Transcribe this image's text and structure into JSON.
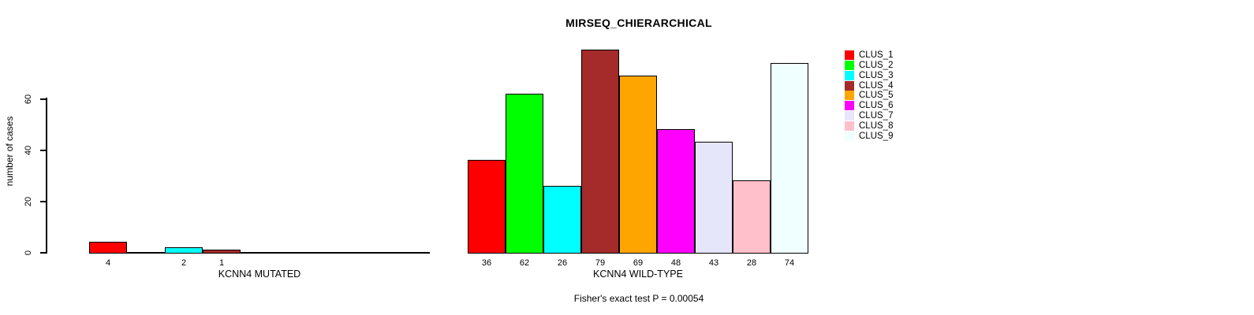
{
  "title": "MIRSEQ_CHIERARCHICAL",
  "chart_data": {
    "type": "bar",
    "title": "MIRSEQ_CHIERARCHICAL",
    "ylabel": "number of cases",
    "xlabel": "",
    "yticks": [
      0,
      20,
      40,
      60
    ],
    "ylim": [
      0,
      79
    ],
    "grid": false,
    "legend_position": "top-right",
    "show_value_labels": true,
    "series_names": [
      "CLUS_1",
      "CLUS_2",
      "CLUS_3",
      "CLUS_4",
      "CLUS_5",
      "CLUS_6",
      "CLUS_7",
      "CLUS_8",
      "CLUS_9"
    ],
    "series_colors": [
      "#FF0000",
      "#00FF00",
      "#00FFFF",
      "#A52A2A",
      "#FFA500",
      "#FF00FF",
      "#E6E6FA",
      "#FFC0CB",
      "#F0FFFF"
    ],
    "groups": [
      {
        "label": "KCNN4 MUTATED",
        "values": [
          4,
          0,
          2,
          1,
          0,
          0,
          0,
          0,
          0
        ]
      },
      {
        "label": "KCNN4 WILD-TYPE",
        "values": [
          36,
          62,
          26,
          79,
          69,
          48,
          43,
          28,
          74
        ]
      }
    ],
    "footnote": "Fisher's exact test P = 0.00054"
  },
  "legend": {
    "items": [
      {
        "label": "CLUS_1",
        "color": "#FF0000"
      },
      {
        "label": "CLUS_2",
        "color": "#00FF00"
      },
      {
        "label": "CLUS_3",
        "color": "#00FFFF"
      },
      {
        "label": "CLUS_4",
        "color": "#A52A2A"
      },
      {
        "label": "CLUS_5",
        "color": "#FFA500"
      },
      {
        "label": "CLUS_6",
        "color": "#FF00FF"
      },
      {
        "label": "CLUS_7",
        "color": "#E6E6FA"
      },
      {
        "label": "CLUS_8",
        "color": "#FFC0CB"
      },
      {
        "label": "CLUS_9",
        "color": "#F0FFFF"
      }
    ]
  }
}
